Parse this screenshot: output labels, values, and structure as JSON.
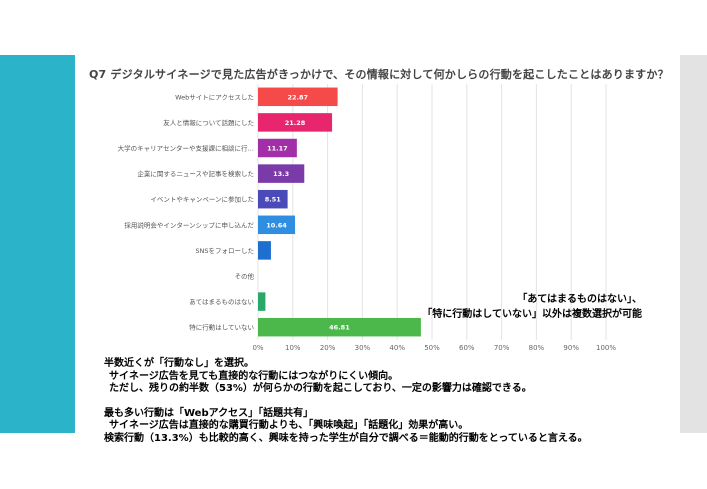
{
  "colors": {
    "left_band": "#2bb4c9",
    "right_band": "#e3e3e3"
  },
  "chart_data": {
    "type": "bar",
    "orientation": "horizontal",
    "title": "Q7 デジタルサイネージで見た広告がきっかけで、その情報に対して何かしらの行動を起こしたことはありますか？",
    "categories": [
      "Webサイトにアクセスした",
      "友人と情報について話題にした",
      "大学のキャリアセンターや支援課に相談に行…",
      "企業に関するニュースや記事を検索した",
      "イベントやキャンペーンに参加した",
      "採用説明会やインターンシップに申し込んだ",
      "SNSをフォローした",
      "その他",
      "あてはまるものはない",
      "特に行動はしていない"
    ],
    "values": [
      22.87,
      21.28,
      11.17,
      13.3,
      8.51,
      10.64,
      3.72,
      0,
      2.13,
      46.81
    ],
    "value_labels": [
      "22.87",
      "21.28",
      "11.17",
      "13.3",
      "8.51",
      "10.64",
      "",
      "",
      "",
      "46.81"
    ],
    "colors": [
      "#f44a4a",
      "#e8266e",
      "#a32fa8",
      "#7a3aa8",
      "#4a4ab8",
      "#2f8ee0",
      "#1f6fd0",
      "#2aa8a8",
      "#2aa86a",
      "#4cb84c"
    ],
    "x_ticks": [
      "0%",
      "10%",
      "20%",
      "30%",
      "40%",
      "50%",
      "60%",
      "70%",
      "80%",
      "90%",
      "100%"
    ],
    "xlim": [
      0,
      100
    ],
    "grid": true,
    "legend": "none"
  },
  "annotation": {
    "line1": "「あてはまるものはない」、",
    "line2": "「特に行動はしていない」以外は複数選択が可能"
  },
  "summary": {
    "para1": [
      "半数近くが「行動なし」を選択。",
      "サイネージ広告を見ても直接的な行動にはつながりにくい傾向。",
      "ただし、残りの約半数（53%）が何らかの行動を起こしており、一定の影響力は確認できる。"
    ],
    "para2": [
      "最も多い行動は「Webアクセス」「話題共有」",
      "サイネージ広告は直接的な購買行動よりも、「興味喚起」「話題化」効果が高い。",
      "検索行動（13.3%）も比較的高く、興味を持った学生が自分で調べる＝能動的行動をとっていると言える。"
    ]
  }
}
